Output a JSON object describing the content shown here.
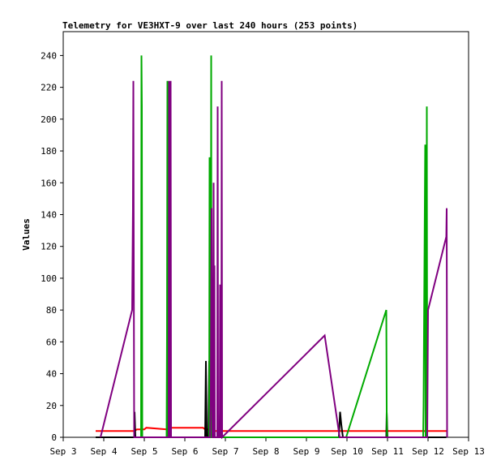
{
  "chart_data": {
    "type": "line",
    "title": "Telemetry for VE3HXT-9 over last 240 hours (253 points)",
    "xlabel": "",
    "ylabel": "Values",
    "xlim": [
      3.0,
      13.0
    ],
    "ylim": [
      0,
      255
    ],
    "x_ticks": [
      {
        "label": "Sep 3",
        "value": 3.0
      },
      {
        "label": "Sep 4",
        "value": 4.0
      },
      {
        "label": "Sep 5",
        "value": 5.0
      },
      {
        "label": "Sep 6",
        "value": 6.0
      },
      {
        "label": "Sep 7",
        "value": 7.0
      },
      {
        "label": "Sep 8",
        "value": 8.0
      },
      {
        "label": "Sep 9",
        "value": 9.0
      },
      {
        "label": "Sep 10",
        "value": 10.0
      },
      {
        "label": "Sep 11",
        "value": 11.0
      },
      {
        "label": "Sep 12",
        "value": 12.0
      },
      {
        "label": "Sep 13",
        "value": 13.0
      }
    ],
    "y_ticks": [
      0,
      20,
      40,
      60,
      80,
      100,
      120,
      140,
      160,
      180,
      200,
      220,
      240
    ],
    "grid": false,
    "legend": "none",
    "series": [
      {
        "color": "#ff0000",
        "points": [
          [
            3.8,
            4
          ],
          [
            4.75,
            4
          ],
          [
            4.82,
            5
          ],
          [
            5.0,
            5
          ],
          [
            5.05,
            6
          ],
          [
            5.55,
            5
          ],
          [
            5.6,
            6
          ],
          [
            6.45,
            6
          ],
          [
            6.5,
            5
          ],
          [
            6.62,
            5
          ],
          [
            6.66,
            4
          ],
          [
            12.45,
            4
          ]
        ]
      },
      {
        "color": "#000000",
        "points": [
          [
            3.8,
            0
          ],
          [
            4.75,
            0
          ],
          [
            4.76,
            16
          ],
          [
            4.78,
            0
          ],
          [
            6.5,
            0
          ],
          [
            6.52,
            48
          ],
          [
            6.54,
            0
          ],
          [
            6.58,
            0
          ],
          [
            6.6,
            48
          ],
          [
            6.62,
            0
          ],
          [
            6.66,
            0
          ],
          [
            6.68,
            36
          ],
          [
            6.7,
            0
          ],
          [
            6.85,
            0
          ],
          [
            6.87,
            16
          ],
          [
            6.89,
            0
          ],
          [
            9.8,
            0
          ],
          [
            9.83,
            16
          ],
          [
            9.86,
            8
          ],
          [
            9.9,
            0
          ],
          [
            10.97,
            0
          ],
          [
            10.98,
            16
          ],
          [
            10.99,
            8
          ],
          [
            11.0,
            0
          ],
          [
            12.45,
            0
          ]
        ]
      },
      {
        "color": "#00aa00",
        "points": [
          [
            4.92,
            0
          ],
          [
            4.93,
            240
          ],
          [
            4.94,
            208
          ],
          [
            4.95,
            0
          ],
          [
            5.55,
            0
          ],
          [
            5.56,
            64
          ],
          [
            5.57,
            224
          ],
          [
            5.58,
            0
          ],
          [
            6.6,
            0
          ],
          [
            6.61,
            176
          ],
          [
            6.62,
            0
          ],
          [
            6.64,
            0
          ],
          [
            6.65,
            240
          ],
          [
            6.66,
            0
          ],
          [
            9.98,
            0
          ],
          [
            10.97,
            80
          ],
          [
            10.98,
            16
          ],
          [
            10.99,
            0
          ],
          [
            11.88,
            0
          ],
          [
            11.89,
            20
          ],
          [
            11.9,
            64
          ],
          [
            11.91,
            104
          ],
          [
            11.92,
            144
          ],
          [
            11.93,
            184
          ],
          [
            11.94,
            0
          ],
          [
            11.96,
            0
          ],
          [
            11.97,
            208
          ],
          [
            11.98,
            0
          ]
        ]
      },
      {
        "color": "#800080",
        "points": [
          [
            3.92,
            0
          ],
          [
            4.7,
            80
          ],
          [
            4.72,
            144
          ],
          [
            4.73,
            224
          ],
          [
            4.75,
            0
          ],
          [
            5.6,
            0
          ],
          [
            5.61,
            224
          ],
          [
            5.62,
            0
          ],
          [
            5.64,
            0
          ],
          [
            5.65,
            224
          ],
          [
            5.66,
            0
          ],
          [
            6.62,
            0
          ],
          [
            6.64,
            24
          ],
          [
            6.66,
            144
          ],
          [
            6.68,
            0
          ],
          [
            6.7,
            0
          ],
          [
            6.71,
            160
          ],
          [
            6.72,
            0
          ],
          [
            6.73,
            108
          ],
          [
            6.74,
            0
          ],
          [
            6.8,
            0
          ],
          [
            6.81,
            208
          ],
          [
            6.82,
            0
          ],
          [
            6.86,
            0
          ],
          [
            6.87,
            96
          ],
          [
            6.88,
            0
          ],
          [
            6.9,
            0
          ],
          [
            6.91,
            224
          ],
          [
            6.92,
            0
          ],
          [
            9.45,
            64
          ],
          [
            9.82,
            0
          ],
          [
            11.98,
            0
          ],
          [
            12.0,
            80
          ],
          [
            12.45,
            126
          ],
          [
            12.46,
            144
          ],
          [
            12.47,
            0
          ]
        ]
      }
    ]
  }
}
